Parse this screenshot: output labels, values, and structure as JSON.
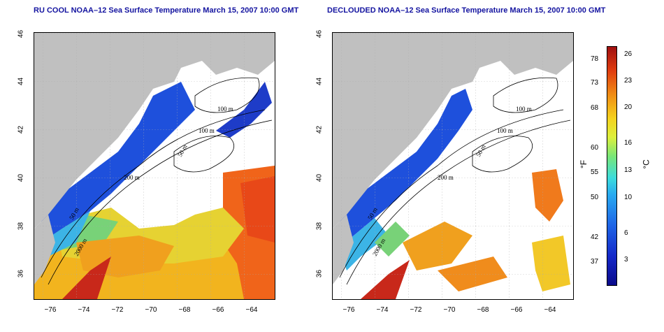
{
  "left_title": "RU COOL NOAA–12 Sea Surface Temperature March 15, 2007 10:00 GMT",
  "right_title": "DECLOUDED NOAA–12 Sea Surface Temperature March 15, 2007 10:00 GMT",
  "lat_ticks": [
    "46",
    "44",
    "42",
    "40",
    "38",
    "36"
  ],
  "lon_ticks": [
    "−76",
    "−74",
    "−72",
    "−70",
    "−68",
    "−66",
    "−64"
  ],
  "contours_left": [
    "100 m",
    "100 m",
    "50 m",
    "200 m",
    "50 m",
    "2000 m"
  ],
  "contours_right": [
    "100 m",
    "100 m",
    "50 m",
    "200 m",
    "50 m",
    "2000 m"
  ],
  "colorbar": {
    "f_label": "°F",
    "c_label": "°C",
    "f_ticks": [
      "78",
      "73",
      "68",
      "60",
      "55",
      "50",
      "42",
      "37"
    ],
    "c_ticks": [
      "26",
      "23",
      "20",
      "16",
      "13",
      "10",
      "6",
      "3"
    ]
  },
  "colors": {
    "land": "#c0c0c0",
    "title": "#1414a0"
  }
}
